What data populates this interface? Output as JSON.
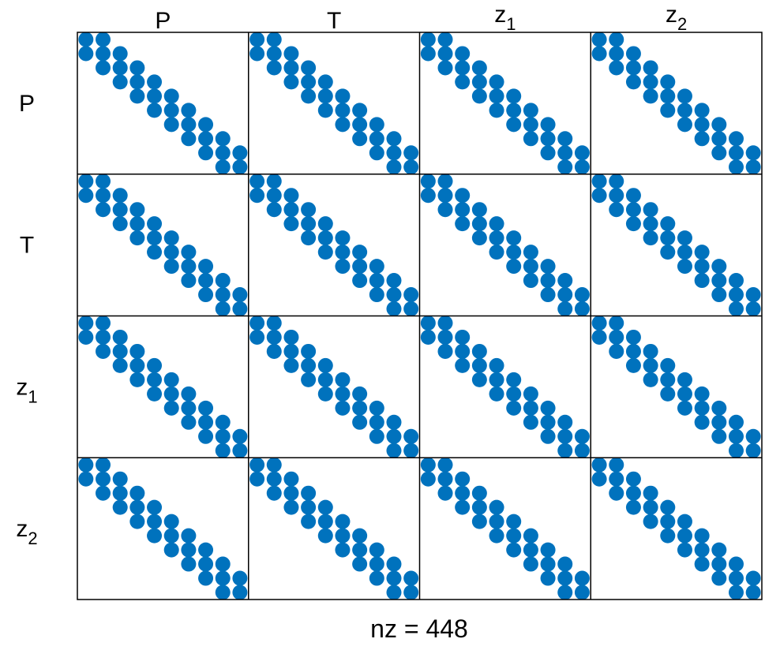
{
  "chart_data": {
    "type": "scatter",
    "subtype": "sparsity-pattern",
    "title": "",
    "xlabel": "nz = 448",
    "ylabel": "",
    "marker_color": "#0072BD",
    "grid": true,
    "legend": "none",
    "block_labels": [
      {
        "base": "P",
        "sub": ""
      },
      {
        "base": "T",
        "sub": ""
      },
      {
        "base": "z",
        "sub": "1"
      },
      {
        "base": "z",
        "sub": "2"
      }
    ],
    "block_size": 10,
    "nonzero_rule": "|row - col| <= 1 within every block",
    "nonzeros_per_block": 28,
    "nz": 448
  }
}
